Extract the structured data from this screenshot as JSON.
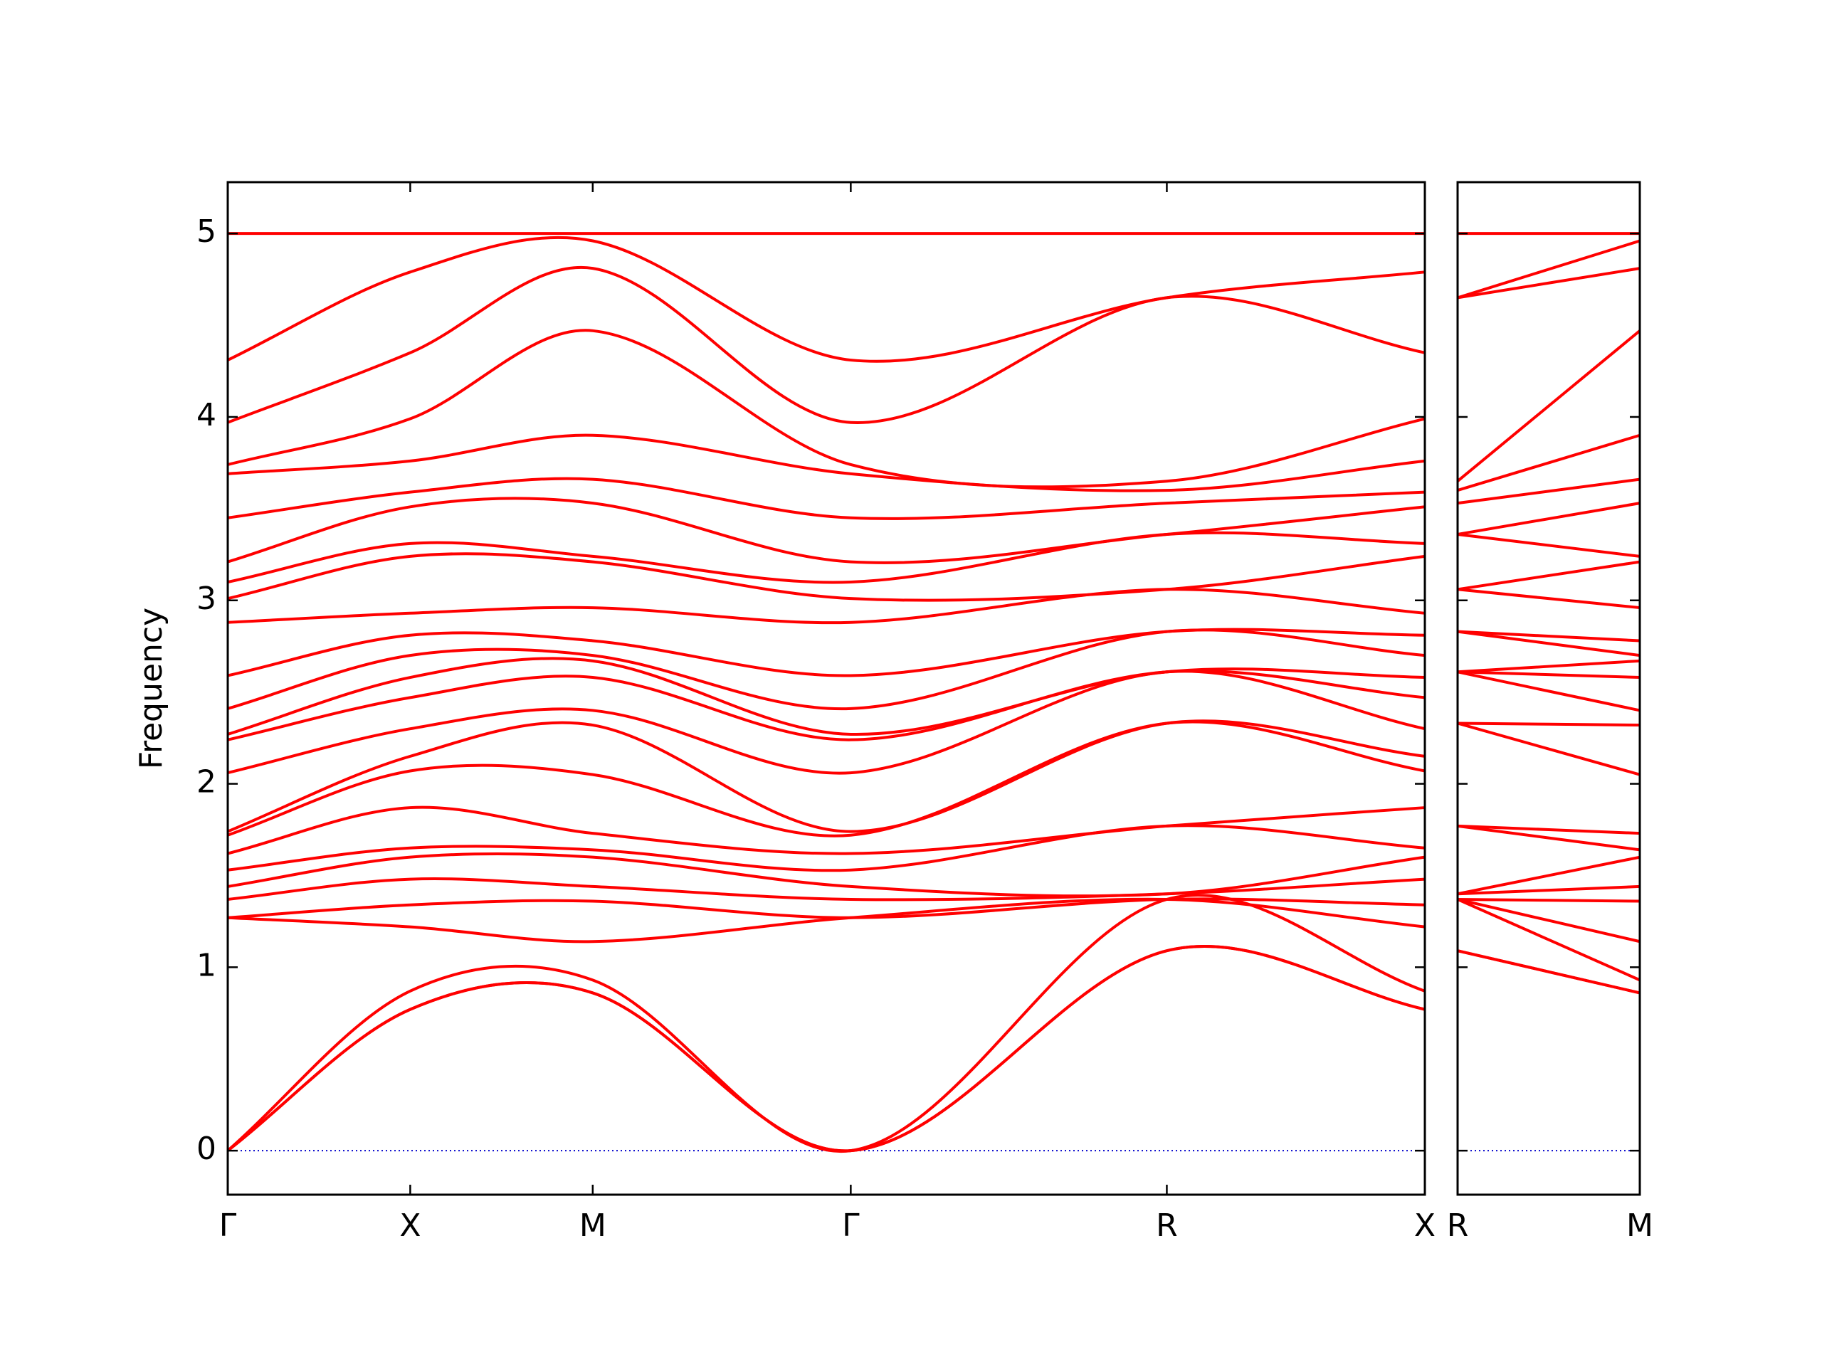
{
  "chart_data": [
    {
      "type": "line",
      "ylabel": "Frequency",
      "color": "#ff0000",
      "x": [
        0,
        1,
        2,
        3.414,
        5.146,
        6.56
      ],
      "xlim": [
        0,
        6.56
      ],
      "xticks": [
        {
          "value": 0,
          "label": "Γ"
        },
        {
          "value": 1,
          "label": "X"
        },
        {
          "value": 2,
          "label": "M"
        },
        {
          "value": 3.414,
          "label": "Γ"
        },
        {
          "value": 5.146,
          "label": "R"
        },
        {
          "value": 6.56,
          "label": "X"
        }
      ],
      "ylim": [
        -0.24,
        5.28
      ],
      "yticks": [
        0,
        1,
        2,
        3,
        4,
        5
      ],
      "ytick_labels": true,
      "reference_line": {
        "value": 0,
        "color": "#0000cc"
      },
      "bands": [
        [
          0,
          0.77,
          0.86,
          0,
          1.09,
          0.77
        ],
        [
          0,
          0.77,
          0.86,
          0,
          1.09,
          0.77
        ],
        [
          0,
          0.87,
          0.93,
          0,
          1.37,
          0.87
        ],
        [
          1.27,
          1.22,
          1.14,
          1.27,
          1.37,
          1.22
        ],
        [
          1.27,
          1.34,
          1.36,
          1.27,
          1.37,
          1.34
        ],
        [
          1.37,
          1.48,
          1.44,
          1.37,
          1.4,
          1.48
        ],
        [
          1.44,
          1.6,
          1.6,
          1.44,
          1.4,
          1.6
        ],
        [
          1.53,
          1.65,
          1.64,
          1.53,
          1.77,
          1.65
        ],
        [
          1.62,
          1.87,
          1.73,
          1.62,
          1.77,
          1.87
        ],
        [
          1.72,
          2.07,
          2.05,
          1.72,
          2.33,
          2.07
        ],
        [
          1.74,
          2.15,
          2.32,
          1.74,
          2.33,
          2.15
        ],
        [
          2.06,
          2.3,
          2.4,
          2.06,
          2.61,
          2.3
        ],
        [
          2.24,
          2.47,
          2.58,
          2.24,
          2.61,
          2.47
        ],
        [
          2.27,
          2.58,
          2.67,
          2.27,
          2.61,
          2.58
        ],
        [
          2.41,
          2.7,
          2.7,
          2.41,
          2.83,
          2.7
        ],
        [
          2.59,
          2.81,
          2.78,
          2.59,
          2.83,
          2.81
        ],
        [
          2.88,
          2.93,
          2.96,
          2.88,
          3.06,
          2.93
        ],
        [
          3.01,
          3.24,
          3.21,
          3.01,
          3.06,
          3.24
        ],
        [
          3.1,
          3.31,
          3.24,
          3.1,
          3.36,
          3.31
        ],
        [
          3.21,
          3.51,
          3.53,
          3.21,
          3.36,
          3.51
        ],
        [
          3.45,
          3.59,
          3.66,
          3.45,
          3.53,
          3.59
        ],
        [
          3.69,
          3.76,
          3.9,
          3.69,
          3.6,
          3.76
        ],
        [
          3.74,
          3.99,
          4.47,
          3.74,
          3.65,
          3.99
        ],
        [
          3.97,
          4.35,
          4.81,
          3.97,
          4.65,
          4.35
        ],
        [
          4.31,
          4.79,
          4.96,
          4.31,
          4.65,
          4.79
        ],
        [
          5.0,
          5.0,
          5.0,
          5.0,
          5.0,
          5.0
        ]
      ]
    },
    {
      "type": "line",
      "color": "#ff0000",
      "x": [
        0,
        1
      ],
      "xlim": [
        0,
        1
      ],
      "xticks": [
        {
          "value": 0,
          "label": "R"
        },
        {
          "value": 1,
          "label": "M"
        }
      ],
      "ylim": [
        -0.24,
        5.28
      ],
      "yticks": [
        0,
        1,
        2,
        3,
        4,
        5
      ],
      "ytick_labels": false,
      "reference_line": {
        "value": 0,
        "color": "#0000cc"
      },
      "bands": [
        [
          1.09,
          0.86
        ],
        [
          1.09,
          0.86
        ],
        [
          1.37,
          0.93
        ],
        [
          1.37,
          1.14
        ],
        [
          1.37,
          1.36
        ],
        [
          1.4,
          1.44
        ],
        [
          1.4,
          1.6
        ],
        [
          1.77,
          1.64
        ],
        [
          1.77,
          1.73
        ],
        [
          2.33,
          2.05
        ],
        [
          2.33,
          2.32
        ],
        [
          2.61,
          2.4
        ],
        [
          2.61,
          2.58
        ],
        [
          2.61,
          2.67
        ],
        [
          2.83,
          2.7
        ],
        [
          2.83,
          2.78
        ],
        [
          3.06,
          2.96
        ],
        [
          3.06,
          3.21
        ],
        [
          3.36,
          3.24
        ],
        [
          3.36,
          3.53
        ],
        [
          3.53,
          3.66
        ],
        [
          3.6,
          3.9
        ],
        [
          3.65,
          4.47
        ],
        [
          4.65,
          4.81
        ],
        [
          4.65,
          4.96
        ],
        [
          5.0,
          5.0
        ]
      ]
    }
  ]
}
